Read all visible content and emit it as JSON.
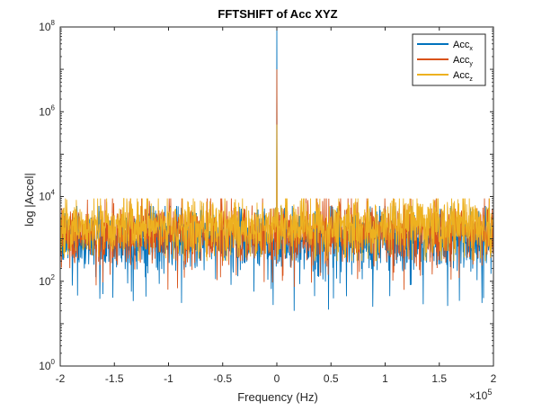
{
  "chart_data": {
    "type": "line",
    "title": "FFTSHIFT of Acc XYZ",
    "xlabel": "Frequency (Hz)",
    "ylabel": "log |Accel|",
    "x_exponent_label": "×10",
    "x_exponent_power": "5",
    "xlim": [
      -200000,
      200000
    ],
    "ylim": [
      1,
      100000000
    ],
    "yscale": "log",
    "grid": false,
    "legend_position": "top-right",
    "x_ticks": [
      {
        "value": -200000,
        "label": "-2"
      },
      {
        "value": -150000,
        "label": "-1.5"
      },
      {
        "value": -100000,
        "label": "-1"
      },
      {
        "value": -50000,
        "label": "-0.5"
      },
      {
        "value": 0,
        "label": "0"
      },
      {
        "value": 50000,
        "label": "0.5"
      },
      {
        "value": 100000,
        "label": "1"
      },
      {
        "value": 150000,
        "label": "1.5"
      },
      {
        "value": 200000,
        "label": "2"
      }
    ],
    "y_ticks": [
      {
        "value": 1,
        "base": "10",
        "exp": "0"
      },
      {
        "value": 100,
        "base": "10",
        "exp": "2"
      },
      {
        "value": 10000,
        "base": "10",
        "exp": "4"
      },
      {
        "value": 1000000,
        "base": "10",
        "exp": "6"
      },
      {
        "value": 100000000,
        "base": "10",
        "exp": "8"
      }
    ],
    "series": [
      {
        "name": "Acc",
        "subscript": "x",
        "color": "#0072BD",
        "baseline_level": 1000,
        "min_level": 20,
        "max_level": 6000,
        "peak_value": 100000000
      },
      {
        "name": "Acc",
        "subscript": "y",
        "color": "#D95319",
        "baseline_level": 1500,
        "min_level": 60,
        "max_level": 9000,
        "peak_value": 10000000
      },
      {
        "name": "Acc",
        "subscript": "z",
        "color": "#EDB120",
        "baseline_level": 2000,
        "min_level": 300,
        "max_level": 9000,
        "peak_value": 500000
      }
    ]
  }
}
